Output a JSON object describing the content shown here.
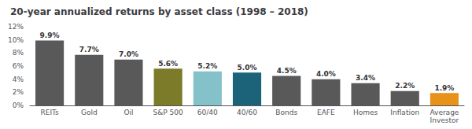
{
  "chart_data": {
    "type": "bar",
    "title": "20-year annualized returns by asset class (1998 – 2018)",
    "categories": [
      "REITs",
      "Gold",
      "Oil",
      "S&P 500",
      "60/40",
      "40/60",
      "Bonds",
      "EAFE",
      "Homes",
      "Inflation",
      "Average\nInvestor"
    ],
    "values": [
      9.9,
      7.7,
      7.0,
      5.6,
      5.2,
      5.0,
      4.5,
      4.0,
      3.4,
      2.2,
      1.9
    ],
    "value_labels": [
      "9.9%",
      "7.7%",
      "7.0%",
      "5.6%",
      "5.2%",
      "5.0%",
      "4.5%",
      "4.0%",
      "3.4%",
      "2.2%",
      "1.9%"
    ],
    "data_labels": true,
    "colors": [
      "#595959",
      "#595959",
      "#595959",
      "#7B7B2A",
      "#85C1C9",
      "#1C637A",
      "#595959",
      "#595959",
      "#595959",
      "#595959",
      "#E8921A"
    ],
    "ylim": [
      0,
      12
    ],
    "yticks": [
      {
        "value": 0,
        "label": "0%"
      },
      {
        "value": 2,
        "label": "2%"
      },
      {
        "value": 4,
        "label": "4%"
      },
      {
        "value": 6,
        "label": "6%"
      },
      {
        "value": 8,
        "label": "8%"
      },
      {
        "value": 10,
        "label": "10%"
      },
      {
        "value": 12,
        "label": "12%"
      }
    ],
    "grid": false
  }
}
